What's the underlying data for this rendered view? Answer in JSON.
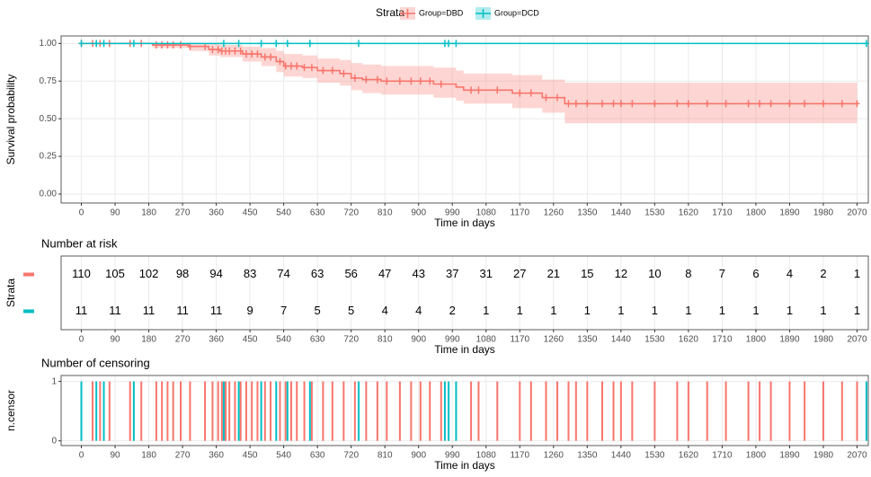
{
  "chart_data": [
    {
      "type": "step",
      "legend_title": "Strata",
      "xlabel": "Time in days",
      "ylabel": "Survival probability",
      "xlim": [
        -54,
        2100
      ],
      "ylim": [
        -0.06,
        1.05
      ],
      "xticks": [
        0,
        90,
        180,
        270,
        360,
        450,
        540,
        630,
        720,
        810,
        900,
        990,
        1080,
        1170,
        1260,
        1350,
        1440,
        1530,
        1620,
        1710,
        1800,
        1890,
        1980,
        2070
      ],
      "yticks": [
        {
          "value": 0,
          "label": "0.00"
        },
        {
          "value": 0.25,
          "label": "0.25"
        },
        {
          "value": 0.5,
          "label": "0.50"
        },
        {
          "value": 0.75,
          "label": "0.75"
        },
        {
          "value": 1,
          "label": "1.00"
        }
      ],
      "grid": true,
      "series": [
        {
          "name": "Group=DBD",
          "color": "#F8766D",
          "x": [
            0,
            190,
            290,
            340,
            370,
            430,
            480,
            520,
            540,
            590,
            630,
            690,
            720,
            750,
            800,
            940,
            1000,
            1020,
            1150,
            1230,
            1290,
            2070
          ],
          "values": [
            1,
            0.99,
            0.98,
            0.96,
            0.95,
            0.93,
            0.91,
            0.88,
            0.85,
            0.84,
            0.82,
            0.8,
            0.77,
            0.76,
            0.75,
            0.73,
            0.71,
            0.69,
            0.67,
            0.64,
            0.6,
            0.6
          ],
          "lower": [
            1,
            0.97,
            0.95,
            0.92,
            0.91,
            0.88,
            0.85,
            0.81,
            0.78,
            0.77,
            0.74,
            0.72,
            0.69,
            0.67,
            0.66,
            0.64,
            0.62,
            0.6,
            0.57,
            0.54,
            0.47,
            0.47
          ],
          "upper": [
            1,
            1,
            1,
            1,
            0.99,
            0.98,
            0.97,
            0.95,
            0.93,
            0.92,
            0.9,
            0.89,
            0.87,
            0.86,
            0.85,
            0.84,
            0.82,
            0.8,
            0.79,
            0.76,
            0.74,
            0.74
          ],
          "censor": [
            0,
            30,
            50,
            75,
            130,
            160,
            200,
            215,
            230,
            245,
            265,
            290,
            330,
            350,
            365,
            375,
            385,
            395,
            410,
            425,
            440,
            455,
            470,
            490,
            505,
            530,
            545,
            560,
            575,
            595,
            615,
            645,
            670,
            700,
            730,
            760,
            790,
            815,
            850,
            880,
            905,
            930,
            960,
            1040,
            1060,
            1110,
            1170,
            1200,
            1240,
            1270,
            1300,
            1320,
            1350,
            1390,
            1420,
            1440,
            1470,
            1530,
            1590,
            1620,
            1670,
            1720,
            1780,
            1810,
            1840,
            1890,
            1930,
            1980,
            2030,
            2070
          ]
        },
        {
          "name": "Group=DCD",
          "color": "#00BFC4",
          "x": [
            0,
            2095
          ],
          "values": [
            1,
            1
          ],
          "censor": [
            0,
            40,
            60,
            140,
            380,
            420,
            480,
            520,
            550,
            610,
            740,
            970,
            980,
            1000,
            2095
          ]
        }
      ]
    },
    {
      "type": "table",
      "title": "Number at risk",
      "xlabel": "Time in days",
      "ylabel": "Strata",
      "xlim": [
        -54,
        2100
      ],
      "xticks": [
        0,
        90,
        180,
        270,
        360,
        450,
        540,
        630,
        720,
        810,
        900,
        990,
        1080,
        1170,
        1260,
        1350,
        1440,
        1530,
        1620,
        1710,
        1800,
        1890,
        1980,
        2070
      ],
      "grid": true,
      "rows": [
        {
          "color": "#F8766D",
          "values": [
            110,
            105,
            102,
            98,
            94,
            83,
            74,
            63,
            56,
            47,
            43,
            37,
            31,
            27,
            21,
            15,
            12,
            10,
            8,
            7,
            6,
            4,
            2,
            1
          ]
        },
        {
          "color": "#00BFC4",
          "values": [
            11,
            11,
            11,
            11,
            11,
            9,
            7,
            5,
            5,
            4,
            4,
            2,
            1,
            1,
            1,
            1,
            1,
            1,
            1,
            1,
            1,
            1,
            1,
            1
          ]
        }
      ]
    },
    {
      "type": "bar",
      "title": "Number of censoring",
      "xlabel": "Time in days",
      "ylabel": "n.censor",
      "xlim": [
        -54,
        2100
      ],
      "ylim": [
        -0.08,
        1.1
      ],
      "xticks": [
        0,
        90,
        180,
        270,
        360,
        450,
        540,
        630,
        720,
        810,
        900,
        990,
        1080,
        1170,
        1260,
        1350,
        1440,
        1530,
        1620,
        1710,
        1800,
        1890,
        1980,
        2070
      ],
      "yticks": [
        0,
        1
      ],
      "grid": true,
      "series": [
        {
          "color": "#F8766D",
          "x": [
            0,
            30,
            50,
            75,
            130,
            160,
            200,
            215,
            230,
            245,
            265,
            290,
            330,
            350,
            365,
            375,
            385,
            395,
            410,
            425,
            440,
            455,
            470,
            490,
            505,
            530,
            545,
            560,
            575,
            595,
            615,
            645,
            670,
            700,
            730,
            760,
            790,
            815,
            850,
            880,
            905,
            930,
            960,
            1040,
            1060,
            1110,
            1170,
            1200,
            1240,
            1270,
            1300,
            1320,
            1350,
            1390,
            1420,
            1440,
            1470,
            1530,
            1590,
            1620,
            1670,
            1720,
            1780,
            1810,
            1840,
            1890,
            1930,
            1980,
            2030,
            2070
          ],
          "values": [
            1,
            1,
            1,
            1,
            1,
            1,
            1,
            1,
            1,
            1,
            1,
            1,
            1,
            1,
            1,
            1,
            1,
            1,
            1,
            1,
            1,
            1,
            1,
            1,
            1,
            1,
            1,
            1,
            1,
            1,
            1,
            1,
            1,
            1,
            1,
            1,
            1,
            1,
            1,
            1,
            1,
            1,
            1,
            1,
            1,
            1,
            1,
            1,
            1,
            1,
            1,
            1,
            1,
            1,
            1,
            1,
            1,
            1,
            1,
            1,
            1,
            1,
            1,
            1,
            1,
            1,
            1,
            1,
            1,
            1
          ]
        },
        {
          "color": "#00BFC4",
          "x": [
            0,
            40,
            60,
            140,
            380,
            420,
            480,
            520,
            550,
            610,
            740,
            970,
            980,
            1000,
            2095
          ],
          "values": [
            1,
            1,
            1,
            1,
            1,
            1,
            1,
            1,
            1,
            1,
            1,
            1,
            1,
            1,
            1
          ]
        }
      ]
    }
  ]
}
